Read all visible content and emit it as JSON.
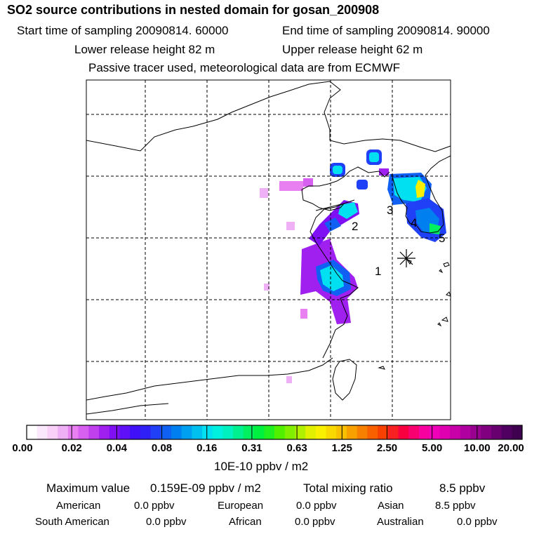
{
  "header": {
    "title": "SO2 source contributions in nested domain for gosan_200908",
    "start_time": "Start time of sampling 20090814. 60000",
    "end_time": "End time of sampling 20090814. 90000",
    "lower_height": "Lower release height   82 m",
    "upper_height": "Upper release height   62 m",
    "tracer_note": "Passive tracer used, meteorological data are from ECMWF"
  },
  "map": {
    "source_labels": [
      "1",
      "2",
      "3",
      "4",
      "5"
    ],
    "receptor_marker": "star-marker"
  },
  "colorbar": {
    "ticks": [
      "0.00",
      "0.02",
      "0.04",
      "0.08",
      "0.16",
      "0.31",
      "0.63",
      "1.25",
      "2.50",
      "5.00",
      "10.00",
      "20.00"
    ],
    "units": "10E-10 ppbv / m2",
    "colors": [
      "#ffffff",
      "#fce8fc",
      "#f8d0f8",
      "#f0b0f6",
      "#e880f2",
      "#d860f0",
      "#c040ee",
      "#a020f0",
      "#8010f4",
      "#6010f6",
      "#4010f8",
      "#3020f8",
      "#2040f8",
      "#1060f4",
      "#0080f0",
      "#00a0f0",
      "#00c0f0",
      "#00e0f0",
      "#00f0e0",
      "#00f0c0",
      "#00f090",
      "#00f060",
      "#00f040",
      "#20f020",
      "#50f000",
      "#80f000",
      "#b0f000",
      "#e0f000",
      "#f8f000",
      "#f8d800",
      "#f8c000",
      "#f8a000",
      "#f88000",
      "#f86000",
      "#f84000",
      "#f82020",
      "#f80040",
      "#f80070",
      "#f800a0",
      "#f000b8",
      "#e000b0",
      "#c800a8",
      "#b000a0",
      "#980090",
      "#800080",
      "#680070",
      "#500060",
      "#400050"
    ]
  },
  "stats": {
    "max_label": "Maximum value",
    "max_value": "0.159E-09 ppbv / m2",
    "total_label": "Total mixing ratio",
    "total_value": "8.5 ppbv"
  },
  "regions": [
    {
      "name": "American",
      "value": "0.0 ppbv"
    },
    {
      "name": "European",
      "value": "0.0 ppbv"
    },
    {
      "name": "Asian",
      "value": "8.5 ppbv"
    },
    {
      "name": "South American",
      "value": "0.0 ppbv"
    },
    {
      "name": "African",
      "value": "0.0 ppbv"
    },
    {
      "name": "Australian",
      "value": "0.0 ppbv"
    }
  ]
}
